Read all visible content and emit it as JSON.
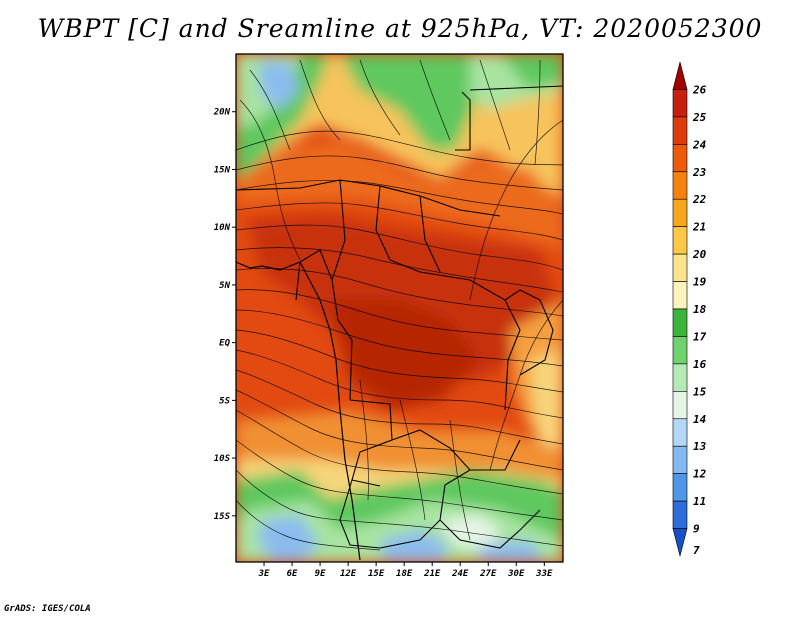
{
  "title": "WBPT [C] and Sreamline at 925hPa, VT: 2020052300",
  "credit": "GrADS: IGES/COLA",
  "map": {
    "lon_range": [
      0,
      35
    ],
    "lat_range": [
      -19,
      25
    ],
    "lon_ticks": [
      "3E",
      "6E",
      "9E",
      "12E",
      "15E",
      "18E",
      "21E",
      "24E",
      "27E",
      "30E",
      "33E"
    ],
    "lon_tick_values": [
      3,
      6,
      9,
      12,
      15,
      18,
      21,
      24,
      27,
      30,
      33
    ],
    "lat_ticks": [
      "20N",
      "15N",
      "10N",
      "5N",
      "EQ",
      "5S",
      "10S",
      "15S"
    ],
    "lat_tick_values": [
      20,
      15,
      10,
      5,
      0,
      -5,
      -10,
      -15
    ]
  },
  "colorbar": {
    "labels": [
      "26",
      "25",
      "24",
      "23",
      "22",
      "21",
      "20",
      "19",
      "18",
      "17",
      "16",
      "15",
      "14",
      "13",
      "12",
      "11",
      "9",
      "7"
    ],
    "colors": [
      "#a50000",
      "#c8200e",
      "#dc3c0c",
      "#ec5a0a",
      "#f5820c",
      "#faa51e",
      "#fcc846",
      "#fde38c",
      "#fdf3bc",
      "#3cb43c",
      "#6ed26e",
      "#b4eab4",
      "#e6f5e6",
      "#b4d7f5",
      "#82b9f0",
      "#5096e6",
      "#2d6edc",
      "#1450c8"
    ]
  },
  "field_colors": {
    "desert_yellow": "#f7d57a",
    "orange": "#f09030",
    "red": "#d83a10",
    "dark_red": "#c02a08",
    "green": "#5ec85e",
    "light_green": "#a8e4a0",
    "blue": "#8cbcee"
  }
}
